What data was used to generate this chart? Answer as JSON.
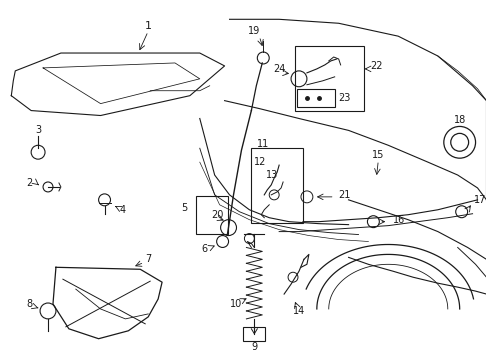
{
  "bg_color": "#ffffff",
  "line_color": "#1a1a1a",
  "text_color": "#1a1a1a",
  "fig_width": 4.89,
  "fig_height": 3.6,
  "dpi": 100
}
